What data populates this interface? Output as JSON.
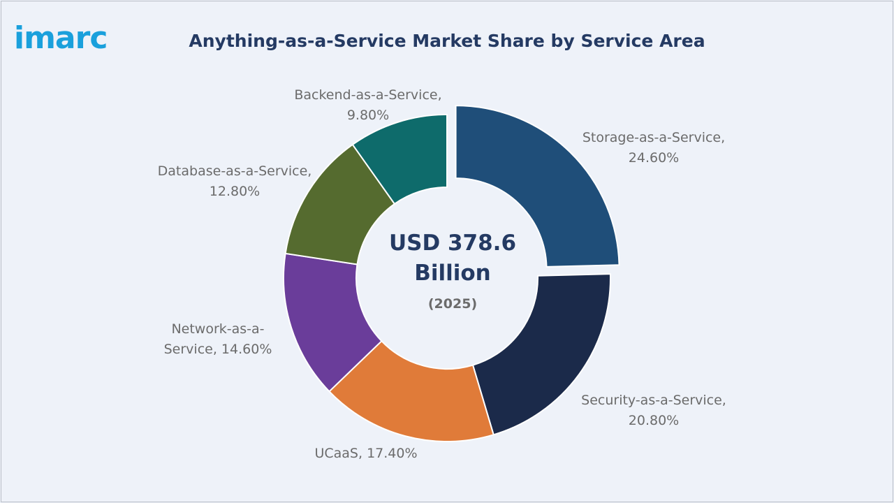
{
  "header": {
    "logo_text": "imarc",
    "title": "Anything-as-a-Service Market Share by Service Area"
  },
  "chart_data": {
    "type": "pie",
    "title": "Anything-as-a-Service Market Share by Service Area",
    "center_value_line1": "USD 378.6",
    "center_value_line2": "Billion",
    "center_year": "(2025)",
    "slices": [
      {
        "label": "Storage-as-a-Service",
        "value": 24.6,
        "text_line1": "Storage-as-a-Service,",
        "text_line2": "24.60%",
        "color": "#1f4e79",
        "exploded": true
      },
      {
        "label": "Security-as-a-Service",
        "value": 20.8,
        "text_line1": "Security-as-a-Service,",
        "text_line2": "20.80%",
        "color": "#1b2a4a",
        "exploded": false
      },
      {
        "label": "UCaaS",
        "value": 17.4,
        "text_line1": "UCaaS, 17.40%",
        "text_line2": "",
        "color": "#e07b39",
        "exploded": false
      },
      {
        "label": "Network-as-a-Service",
        "value": 14.6,
        "text_line1": "Network-as-a-",
        "text_line2": "Service, 14.60%",
        "color": "#6a3d9a",
        "exploded": false
      },
      {
        "label": "Database-as-a-Service",
        "value": 12.8,
        "text_line1": "Database-as-a-Service,",
        "text_line2": "12.80%",
        "color": "#556b2f",
        "exploded": false
      },
      {
        "label": "Backend-as-a-Service",
        "value": 9.8,
        "text_line1": "Backend-as-a-Service,",
        "text_line2": "9.80%",
        "color": "#0e6b6b",
        "exploded": false
      }
    ]
  }
}
